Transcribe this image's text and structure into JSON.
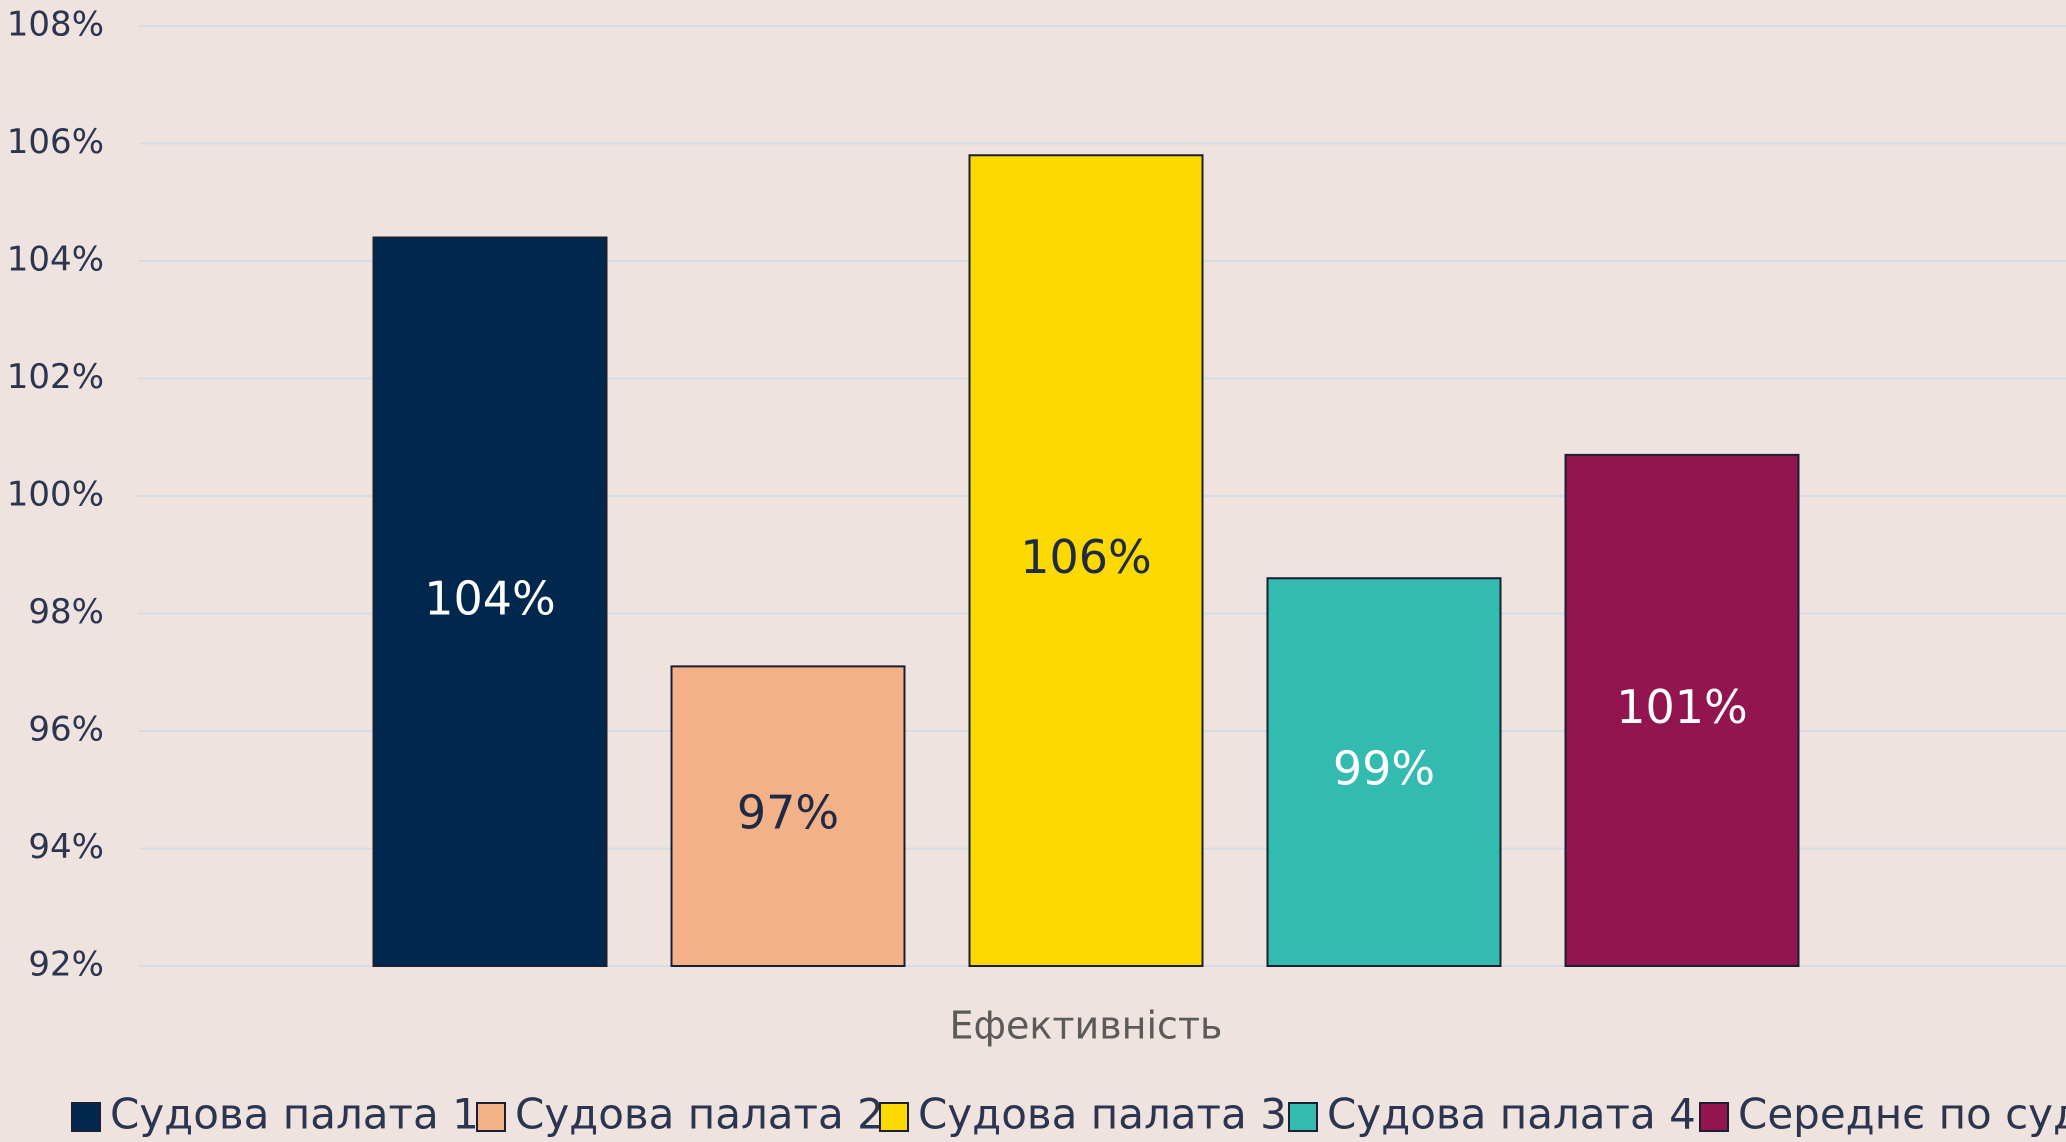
{
  "chart_data": {
    "type": "bar",
    "categories": [
      "Ефективність"
    ],
    "series": [
      {
        "name": "Судова палата 1",
        "color": "#00274d",
        "values": [
          104.4
        ],
        "value_labels": [
          "104%"
        ]
      },
      {
        "name": "Судова палата 2",
        "color": "#f3b187",
        "values": [
          97.1
        ],
        "value_labels": [
          "97%"
        ]
      },
      {
        "name": "Судова палата 3",
        "color": "#fcd900",
        "values": [
          105.8
        ],
        "value_labels": [
          "106%"
        ]
      },
      {
        "name": "Судова палата 4",
        "color": "#33bbb0",
        "values": [
          98.6
        ],
        "value_labels": [
          "99%"
        ]
      },
      {
        "name": "Середнє по суду",
        "color": "#93154f",
        "values": [
          100.7
        ],
        "value_labels": [
          "101%"
        ]
      }
    ],
    "ylim": [
      92,
      108
    ],
    "yticks": [
      {
        "value": 92,
        "label": "92%"
      },
      {
        "value": 94,
        "label": "94%"
      },
      {
        "value": 96,
        "label": "96%"
      },
      {
        "value": 98,
        "label": "98%"
      },
      {
        "value": 100,
        "label": "100%"
      },
      {
        "value": 102,
        "label": "102%"
      },
      {
        "value": 104,
        "label": "104%"
      },
      {
        "value": 106,
        "label": "106%"
      },
      {
        "value": 108,
        "label": "108%"
      }
    ],
    "grid": true,
    "legend": "bottom"
  }
}
